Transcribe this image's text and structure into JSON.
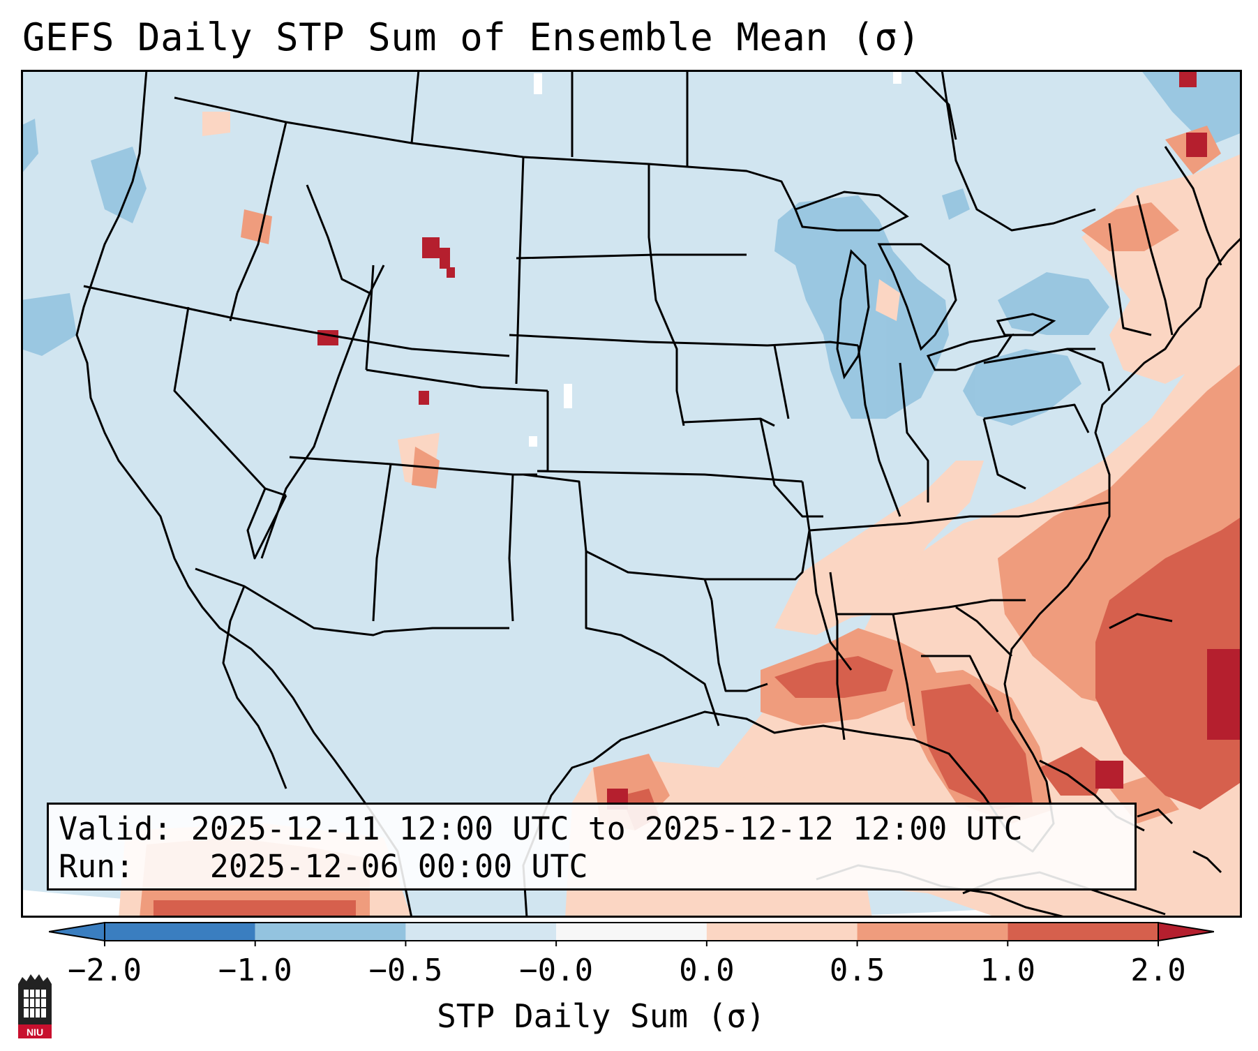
{
  "title": "GEFS Daily STP Sum of Ensemble Mean (σ)",
  "info": {
    "valid_label": "Valid:",
    "valid_value": "2025-12-11 12:00 UTC to 2025-12-12 12:00 UTC",
    "run_label": "Run:",
    "run_value": "2025-12-06 00:00 UTC"
  },
  "colorbar": {
    "label": "STP Daily Sum (σ)",
    "ticks": [
      "−2.0",
      "−1.0",
      "−0.5",
      "−0.0",
      "0.0",
      "0.5",
      "1.0",
      "2.0"
    ],
    "colors": [
      "#3a7ec0",
      "#93c3df",
      "#d4e6f1",
      "#f7f7f7",
      "#fbd6c3",
      "#ef9c7d",
      "#d6604d",
      "#b51f2e"
    ]
  },
  "map": {
    "region": "Contiguous United States",
    "background_color": "#d1e5f0",
    "ocean_color": "#ffffff"
  },
  "logo": {
    "text": "NIU",
    "icon": "niu-logo-icon"
  }
}
